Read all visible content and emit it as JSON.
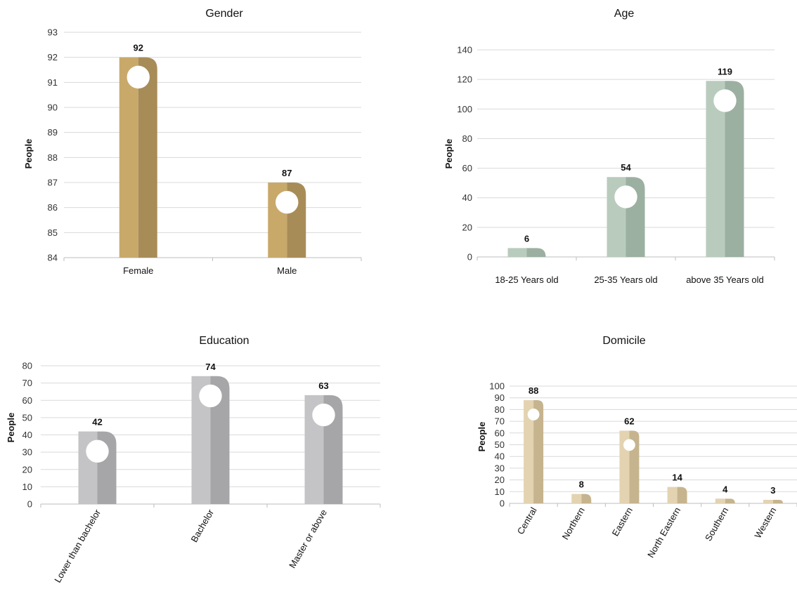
{
  "chart_data": [
    {
      "type": "bar",
      "title": "Gender",
      "ylabel": "People",
      "categories": [
        "Female",
        "Male"
      ],
      "values": [
        92,
        87
      ],
      "ylim": [
        84,
        93
      ],
      "yticks": [
        84,
        85,
        86,
        87,
        88,
        89,
        90,
        91,
        92,
        93
      ],
      "grid": true,
      "colors": {
        "light": "#c8a96a",
        "dark": "#a88c58"
      }
    },
    {
      "type": "bar",
      "title": "Age",
      "ylabel": "People",
      "categories": [
        "18-25 Years old",
        "25-35 Years old",
        "above 35 Years old"
      ],
      "values": [
        6,
        54,
        119
      ],
      "ylim": [
        0,
        140
      ],
      "yticks": [
        0,
        20,
        40,
        60,
        80,
        100,
        120,
        140
      ],
      "grid": true,
      "colors": {
        "light": "#b9cbbd",
        "dark": "#9cb0a1"
      }
    },
    {
      "type": "bar",
      "title": "Education",
      "ylabel": "People",
      "categories": [
        "Lower than bachelor",
        "Bachelor",
        "Master or above"
      ],
      "values": [
        42,
        74,
        63
      ],
      "ylim": [
        0,
        80
      ],
      "yticks": [
        0,
        10,
        20,
        30,
        40,
        50,
        60,
        70,
        80
      ],
      "grid": true,
      "colors": {
        "light": "#c4c4c6",
        "dark": "#a6a6a8"
      }
    },
    {
      "type": "bar",
      "title": "Domicile",
      "ylabel": "People",
      "categories": [
        "Central",
        "Northern",
        "Eastern",
        "North Eastern",
        "Southern",
        "Western"
      ],
      "values": [
        88,
        8,
        62,
        14,
        4,
        3
      ],
      "ylim": [
        0,
        100
      ],
      "yticks": [
        0,
        10,
        20,
        30,
        40,
        50,
        60,
        70,
        80,
        90,
        100
      ],
      "grid": true,
      "colors": {
        "light": "#e3d3b1",
        "dark": "#c6b48e"
      }
    }
  ]
}
